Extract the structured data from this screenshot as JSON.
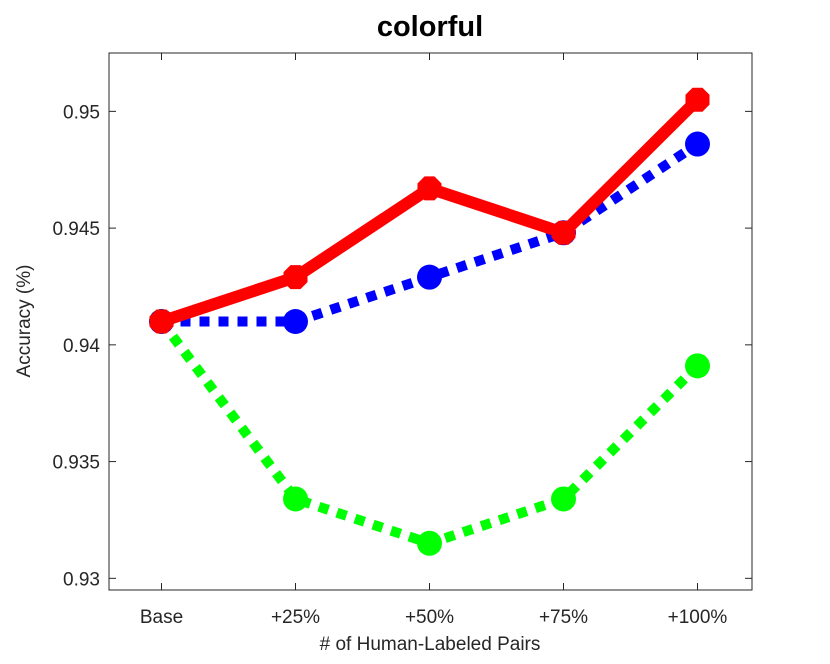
{
  "chart_data": {
    "type": "line",
    "title": "colorful",
    "xlabel": "# of Human-Labeled Pairs",
    "ylabel": "Accuracy (%)",
    "categories": [
      "Base",
      "+25%",
      "+50%",
      "+75%",
      "+100%"
    ],
    "ylim": [
      0.9295,
      0.9525
    ],
    "yticks": [
      0.93,
      0.935,
      0.94,
      0.945,
      0.95
    ],
    "ytick_labels": [
      "0.93",
      "0.935",
      "0.94",
      "0.945",
      "0.95"
    ],
    "grid": false,
    "series": [
      {
        "values": [
          0.941,
          0.9429,
          0.9467,
          0.9448,
          0.9505
        ],
        "color": "#ff0000",
        "line_style": "solid",
        "marker": "octagon"
      },
      {
        "values": [
          0.941,
          0.941,
          0.9429,
          0.9448,
          0.9486
        ],
        "color": "#0000ff",
        "line_style": "dotted",
        "marker": "circle"
      },
      {
        "values": [
          0.941,
          0.9334,
          0.9315,
          0.9334,
          0.9391
        ],
        "color": "#00ff00",
        "line_style": "dotted",
        "marker": "circle"
      }
    ]
  }
}
